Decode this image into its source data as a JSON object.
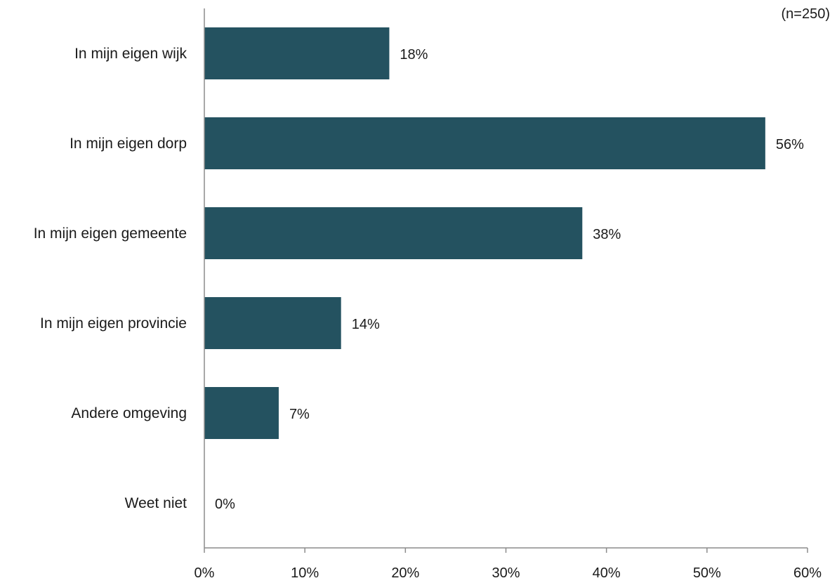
{
  "chart_data": {
    "type": "bar",
    "orientation": "horizontal",
    "note": "(n=250)",
    "categories": [
      "In mijn eigen wijk",
      "In mijn eigen dorp",
      "In mijn eigen gemeente",
      "In mijn eigen provincie",
      "Andere omgeving",
      "Weet niet"
    ],
    "values": [
      18.4,
      55.8,
      37.6,
      13.6,
      7.4,
      0
    ],
    "value_labels": [
      "18%",
      "56%",
      "38%",
      "14%",
      "7%",
      "0%"
    ],
    "xlim": [
      0,
      60
    ],
    "xticks": [
      0,
      10,
      20,
      30,
      40,
      50,
      60
    ],
    "xtick_labels": [
      "0%",
      "10%",
      "20%",
      "30%",
      "40%",
      "50%",
      "60%"
    ],
    "bar_color": "#245260",
    "axis_color": "#8c8c8c",
    "grid": false,
    "legend": "none"
  }
}
